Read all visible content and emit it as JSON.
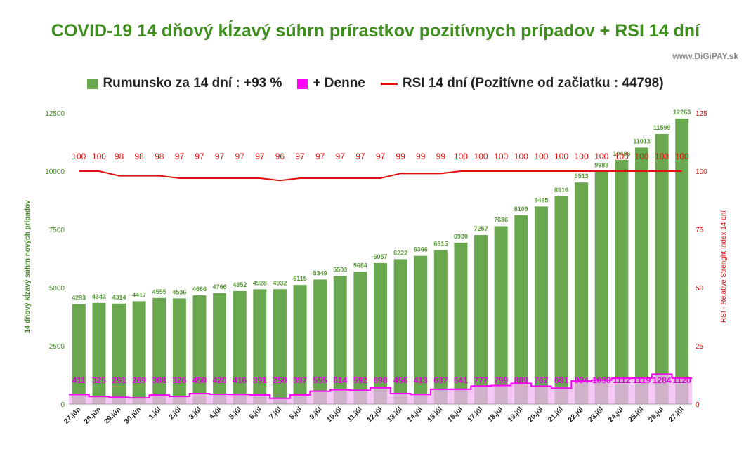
{
  "title": "COVID-19 14 dňový kĺzavý súhrn prírastkov pozitívnych prípadov + RSI 14 dní",
  "source": "www.DiGiPAY.sk",
  "colors": {
    "total": "#6aa84f",
    "daily": "#ff00ff",
    "daily_fill": "#f2b6f2",
    "rsi": "#e01010"
  },
  "legend": [
    {
      "label": "Rumunsko za 14 dní : +93 %",
      "color": "#6aa84f",
      "shape": "square"
    },
    {
      "label": "+ Denne",
      "color": "#ff00ff",
      "shape": "square"
    },
    {
      "label": "RSI 14 dní (Pozitívne od začiatku : 44798)",
      "color": "#e01010",
      "shape": "line"
    }
  ],
  "chart_data": {
    "type": "bar",
    "title": "COVID-19 14 dňový kĺzavý súhrn prírastkov pozitívnych prípadov + RSI 14 dní",
    "ylabel": "14 dňový kĺzavý súhrn nových prípadov",
    "y2label": "RSI - Relative Strenght Index 14 dní",
    "ylim": [
      0,
      12500
    ],
    "y2lim": [
      0,
      125
    ],
    "yticks": [
      0,
      2500,
      5000,
      7500,
      10000,
      12500
    ],
    "y2ticks": [
      0,
      25,
      50,
      75,
      100,
      125
    ],
    "grid": false,
    "legend_position": "top",
    "categories": [
      "27.jún",
      "28.jún",
      "29.jún",
      "30.jún",
      "1.júl",
      "2.júl",
      "3.júl",
      "4.júl",
      "5.júl",
      "6.júl",
      "7.júl",
      "8.júl",
      "9.júl",
      "10.júl",
      "11.júl",
      "12.júl",
      "13.júl",
      "14.júl",
      "15.júl",
      "16.júl",
      "17.júl",
      "18.júl",
      "19.júl",
      "20.júl",
      "21.júl",
      "22.júl",
      "23.júl",
      "24.júl",
      "25.júl",
      "26.júl",
      "27.júl"
    ],
    "series": [
      {
        "name": "Rumunsko za 14 dní : +93 %",
        "type": "bar",
        "axis": "left",
        "values": [
          4293,
          4343,
          4314,
          4417,
          4555,
          4536,
          4666,
          4766,
          4852,
          4928,
          4932,
          5115,
          5349,
          5503,
          5684,
          6057,
          6222,
          6366,
          6615,
          6930,
          7257,
          7636,
          8109,
          8485,
          8916,
          9513,
          9988,
          10486,
          11013,
          11599,
          12263
        ]
      },
      {
        "name": "+ Denne",
        "type": "step-area",
        "axis": "left",
        "values": [
          411,
          325,
          291,
          269,
          388,
          326,
          450,
          420,
          416,
          391,
          250,
          397,
          555,
          614,
          592,
          698,
          456,
          413,
          637,
          641,
          777,
          799,
          889,
          767,
          681,
          994,
          1030,
          1112,
          1119,
          1284,
          1120
        ]
      },
      {
        "name": "RSI 14 dní (Pozitívne od začiatku : 44798)",
        "type": "line",
        "axis": "right",
        "values": [
          100,
          100,
          98,
          98,
          98,
          97,
          97,
          97,
          97,
          97,
          96,
          97,
          97,
          97,
          97,
          97,
          99,
          99,
          99,
          100,
          100,
          100,
          100,
          100,
          100,
          100,
          100,
          100,
          100,
          100,
          100
        ]
      }
    ]
  }
}
